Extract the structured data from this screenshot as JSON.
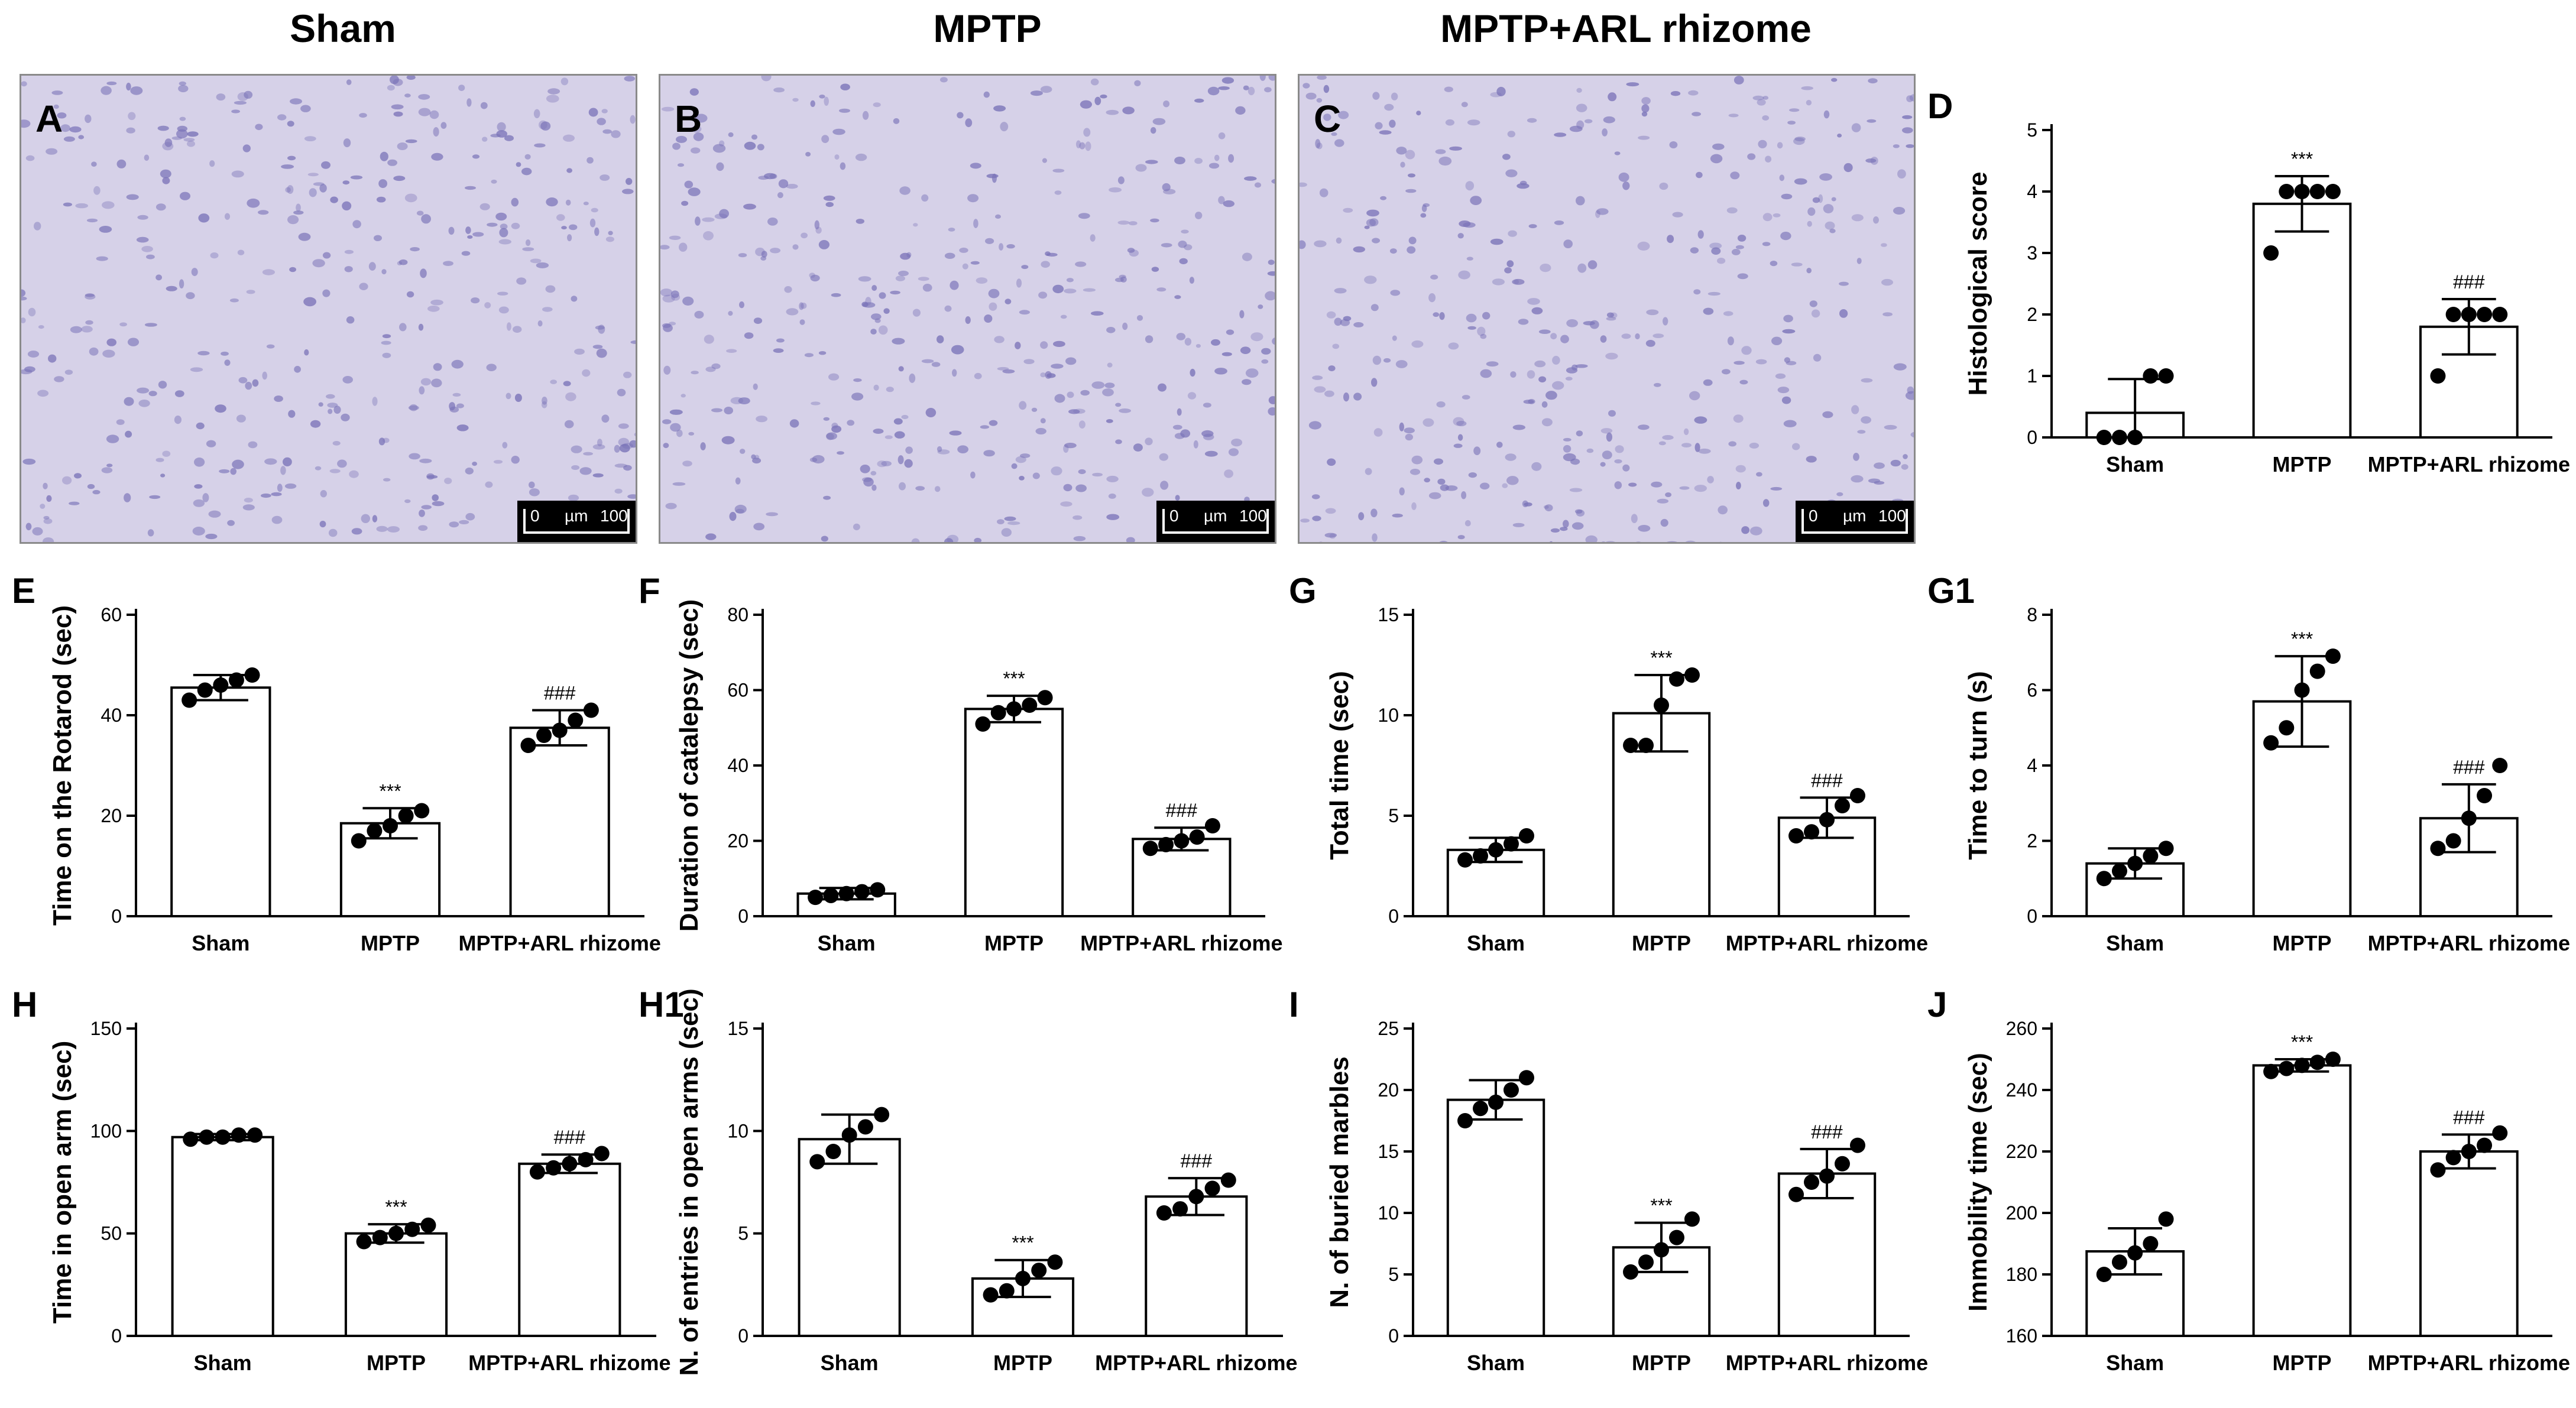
{
  "columns": {
    "sham": "Sham",
    "mptp": "MPTP",
    "arl": "MPTP+ARL rhizome"
  },
  "micrographs": [
    {
      "letter": "A",
      "scale_start": "0",
      "scale_unit": "µm",
      "scale_end": "100"
    },
    {
      "letter": "B",
      "scale_start": "0",
      "scale_unit": "µm",
      "scale_end": "100"
    },
    {
      "letter": "C",
      "scale_start": "0",
      "scale_unit": "µm",
      "scale_end": "100"
    }
  ],
  "colors": {
    "bar_fill": "#ffffff",
    "stroke": "#000000",
    "micrograph_bg": "#d6d1e8",
    "nucleus": "#7a73b8"
  },
  "chart_data": [
    {
      "panel": "D",
      "type": "bar",
      "categories": [
        "Sham",
        "MPTP",
        "MPTP+ARL rhizome"
      ],
      "ylabel": "Histological score",
      "ylim": [
        0,
        5
      ],
      "yticks": [
        0,
        1,
        2,
        3,
        4,
        5
      ],
      "values": [
        0.4,
        3.8,
        1.8
      ],
      "errors": [
        0.55,
        0.45,
        0.45
      ],
      "points": [
        [
          0,
          0,
          0,
          1,
          1
        ],
        [
          3,
          4,
          4,
          4,
          4
        ],
        [
          1,
          2,
          2,
          2,
          2
        ]
      ],
      "significance": [
        "",
        "***",
        "###"
      ]
    },
    {
      "panel": "E",
      "type": "bar",
      "categories": [
        "Sham",
        "MPTP",
        "MPTP+ARL rhizome"
      ],
      "ylabel": "Time on the Rotarod (sec)",
      "ylim": [
        0,
        60
      ],
      "yticks": [
        0,
        20,
        40,
        60
      ],
      "values": [
        45.5,
        18.5,
        37.5
      ],
      "errors": [
        2.5,
        3.0,
        3.5
      ],
      "points": [
        [
          43,
          45,
          46,
          47,
          48
        ],
        [
          15,
          17,
          18,
          20,
          21
        ],
        [
          34,
          36,
          37,
          39,
          41
        ]
      ],
      "significance": [
        "",
        "***",
        "###"
      ]
    },
    {
      "panel": "F",
      "type": "bar",
      "categories": [
        "Sham",
        "MPTP",
        "MPTP+ARL rhizome"
      ],
      "ylabel": "Duration of catalepsy (sec)",
      "ylim": [
        0,
        80
      ],
      "yticks": [
        0,
        20,
        40,
        60,
        80
      ],
      "values": [
        6,
        55,
        20.5
      ],
      "errors": [
        1.5,
        3.5,
        3.0
      ],
      "points": [
        [
          5,
          5.5,
          6,
          6.5,
          7
        ],
        [
          51,
          54,
          55,
          56,
          58
        ],
        [
          18,
          19,
          20,
          21,
          24
        ]
      ],
      "significance": [
        "",
        "***",
        "###"
      ]
    },
    {
      "panel": "G",
      "type": "bar",
      "categories": [
        "Sham",
        "MPTP",
        "MPTP+ARL rhizome"
      ],
      "ylabel": "Total time (sec)",
      "ylim": [
        0,
        15
      ],
      "yticks": [
        0,
        5,
        10,
        15
      ],
      "values": [
        3.3,
        10.1,
        4.9
      ],
      "errors": [
        0.6,
        1.9,
        1.0
      ],
      "points": [
        [
          2.8,
          3,
          3.3,
          3.6,
          4.0
        ],
        [
          8.5,
          8.5,
          10.5,
          11.8,
          12.0
        ],
        [
          4.0,
          4.2,
          4.8,
          5.5,
          6.0
        ]
      ],
      "significance": [
        "",
        "***",
        "###"
      ]
    },
    {
      "panel": "G1",
      "type": "bar",
      "categories": [
        "Sham",
        "MPTP",
        "MPTP+ARL rhizome"
      ],
      "ylabel": "Time to turn (s)",
      "ylim": [
        0,
        8
      ],
      "yticks": [
        0,
        2,
        4,
        6,
        8
      ],
      "values": [
        1.4,
        5.7,
        2.6
      ],
      "errors": [
        0.4,
        1.2,
        0.9
      ],
      "points": [
        [
          1.0,
          1.2,
          1.4,
          1.6,
          1.8
        ],
        [
          4.6,
          5.0,
          6.0,
          6.5,
          6.9
        ],
        [
          1.8,
          2.0,
          2.6,
          3.2,
          4.0
        ]
      ],
      "significance": [
        "",
        "***",
        "###"
      ]
    },
    {
      "panel": "H",
      "type": "bar",
      "categories": [
        "Sham",
        "MPTP",
        "MPTP+ARL rhizome"
      ],
      "ylabel": "Time in open arm (sec)",
      "ylim": [
        0,
        150
      ],
      "yticks": [
        0,
        50,
        100,
        150
      ],
      "values": [
        97,
        50,
        84
      ],
      "errors": [
        1.5,
        4.5,
        4.5
      ],
      "points": [
        [
          96,
          97,
          97,
          98,
          98
        ],
        [
          46,
          48,
          50,
          52,
          54
        ],
        [
          80,
          82,
          84,
          86,
          89
        ]
      ],
      "significance": [
        "",
        "***",
        "###"
      ]
    },
    {
      "panel": "H1",
      "type": "bar",
      "categories": [
        "Sham",
        "MPTP",
        "MPTP+ARL rhizome"
      ],
      "ylabel": "N. of entries in open arms (sec)",
      "ylim": [
        0,
        15
      ],
      "yticks": [
        0,
        5,
        10,
        15
      ],
      "values": [
        9.6,
        2.8,
        6.8
      ],
      "errors": [
        1.2,
        0.9,
        0.9
      ],
      "points": [
        [
          8.5,
          9,
          9.8,
          10.2,
          10.8
        ],
        [
          2.0,
          2.2,
          2.8,
          3.2,
          3.6
        ],
        [
          6.0,
          6.2,
          6.8,
          7.2,
          7.6
        ]
      ],
      "significance": [
        "",
        "***",
        "###"
      ]
    },
    {
      "panel": "I",
      "type": "bar",
      "categories": [
        "Sham",
        "MPTP",
        "MPTP+ARL rhizome"
      ],
      "ylabel": "N. of  buried marbles",
      "ylim": [
        0,
        25
      ],
      "yticks": [
        0,
        5,
        10,
        15,
        20,
        25
      ],
      "values": [
        19.2,
        7.2,
        13.2
      ],
      "errors": [
        1.6,
        2.0,
        2.0
      ],
      "points": [
        [
          17.5,
          18.5,
          19,
          20,
          21
        ],
        [
          5.2,
          6,
          7,
          8,
          9.5
        ],
        [
          11.5,
          12.5,
          13,
          14,
          15.5
        ]
      ],
      "significance": [
        "",
        "***",
        "###"
      ]
    },
    {
      "panel": "J",
      "type": "bar",
      "categories": [
        "Sham",
        "MPTP",
        "MPTP+ARL rhizome"
      ],
      "ylabel": "Immobility time (sec)",
      "ylim": [
        160,
        260
      ],
      "yticks": [
        160,
        180,
        200,
        220,
        240,
        260
      ],
      "values": [
        187.5,
        248,
        220
      ],
      "errors": [
        7.5,
        2.0,
        5.5
      ],
      "points": [
        [
          180,
          184,
          187,
          190,
          198
        ],
        [
          246,
          247,
          248,
          249,
          250
        ],
        [
          214,
          218,
          220,
          222,
          226
        ]
      ],
      "significance": [
        "",
        "***",
        "###"
      ]
    }
  ]
}
